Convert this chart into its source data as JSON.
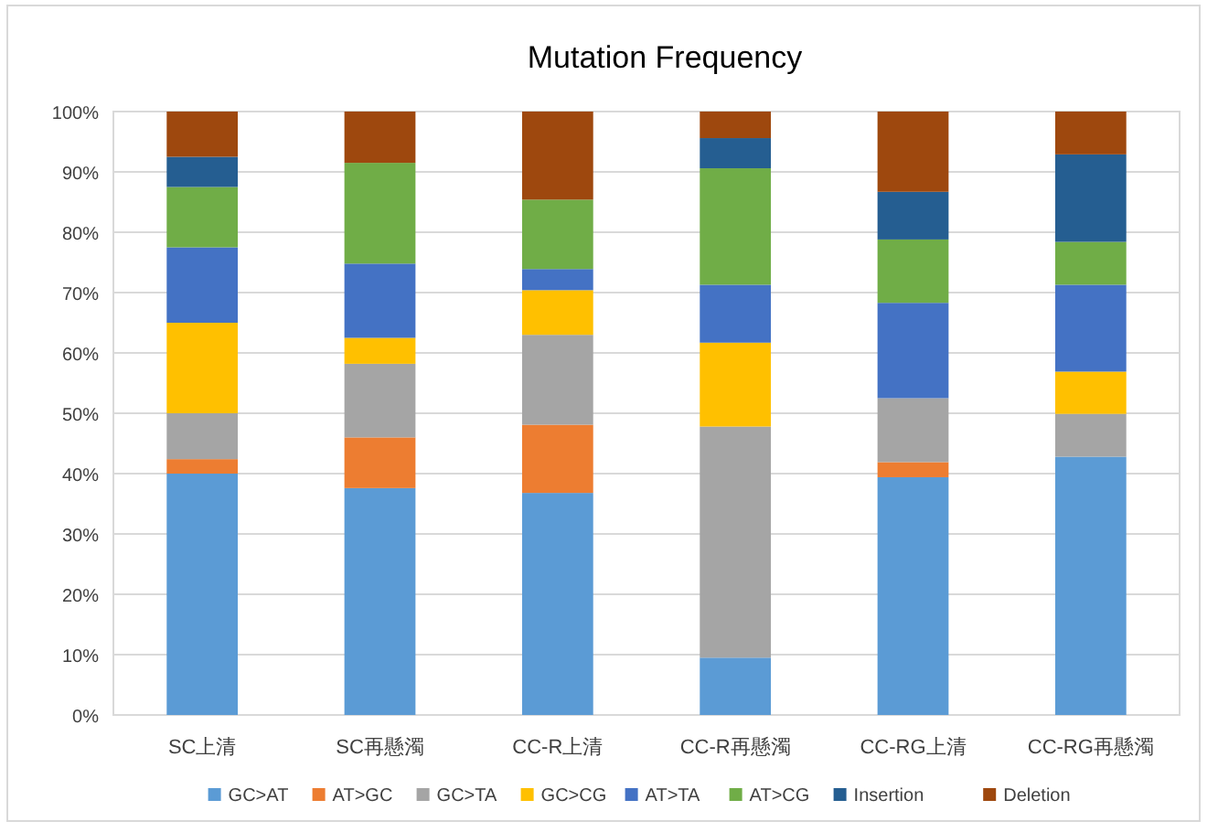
{
  "chart_data": {
    "type": "bar",
    "title": "Mutation Frequency",
    "stacked": true,
    "grid": "y",
    "legend": "bottom",
    "categories": [
      "SC上清",
      "SC再懸濁",
      "CC-R上清",
      "CC-R再懸濁",
      "CC-RG上清",
      "CC-RG再懸濁"
    ],
    "ylim": [
      0,
      100
    ],
    "yticks": [
      {
        "value": 0,
        "label": "0%"
      },
      {
        "value": 10,
        "label": "10%"
      },
      {
        "value": 20,
        "label": "20%"
      },
      {
        "value": 30,
        "label": "30%"
      },
      {
        "value": 40,
        "label": "40%"
      },
      {
        "value": 50,
        "label": "50%"
      },
      {
        "value": 60,
        "label": "60%"
      },
      {
        "value": 70,
        "label": "70%"
      },
      {
        "value": 80,
        "label": "80%"
      },
      {
        "value": 90,
        "label": "90%"
      },
      {
        "value": 100,
        "label": "100%"
      }
    ],
    "series": [
      {
        "name": "GC>AT",
        "color": "#5b9bd5",
        "values": [
          40,
          37.6,
          36.8,
          9.5,
          39.4,
          42.8
        ]
      },
      {
        "name": "AT>GC",
        "color": "#ed7d31",
        "values": [
          2.4,
          8.4,
          11.3,
          0,
          2.5,
          0
        ]
      },
      {
        "name": "GC>TA",
        "color": "#a5a5a5",
        "values": [
          7.6,
          12.2,
          14.9,
          38.3,
          10.6,
          7.1
        ]
      },
      {
        "name": "GC>CG",
        "color": "#ffc000",
        "values": [
          15,
          4.3,
          7.4,
          13.9,
          0,
          7
        ]
      },
      {
        "name": "AT>TA",
        "color": "#4472c4",
        "values": [
          12.5,
          12.3,
          3.5,
          9.6,
          15.8,
          14.4
        ]
      },
      {
        "name": "AT>CG",
        "color": "#70ad47",
        "values": [
          10,
          16.7,
          11.5,
          19.3,
          10.5,
          7.1
        ]
      },
      {
        "name": "Insertion",
        "color": "#255e91",
        "values": [
          5,
          0,
          0,
          5,
          7.9,
          14.5
        ]
      },
      {
        "name": "Deletion",
        "color": "#9e480e",
        "values": [
          7.5,
          8.5,
          14.6,
          4.4,
          13.3,
          7.1
        ]
      }
    ]
  }
}
